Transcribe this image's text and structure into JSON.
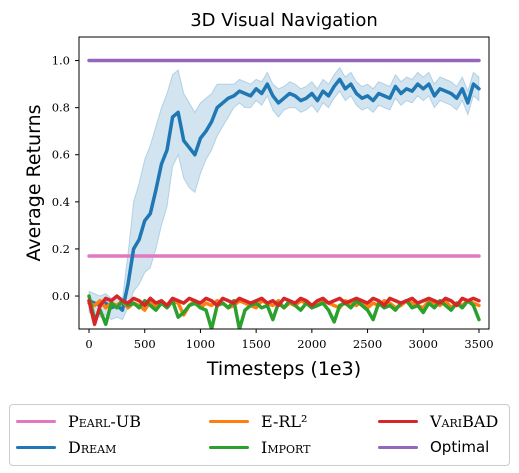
{
  "chart_data": {
    "type": "line",
    "title": "3D Visual Navigation",
    "xlabel": "Timesteps (1e3)",
    "ylabel": "Average Returns",
    "xlim": [
      -90,
      3590
    ],
    "ylim": [
      -0.14,
      1.1
    ],
    "xticks": [
      0,
      500,
      1000,
      1500,
      2000,
      2500,
      3000,
      3500
    ],
    "yticks": [
      0.0,
      0.2,
      0.4,
      0.6,
      0.8,
      1.0
    ],
    "xtick_labels": [
      "0",
      "500",
      "1000",
      "1500",
      "2000",
      "2500",
      "3000",
      "3500"
    ],
    "ytick_labels": [
      "0.0",
      "0.2",
      "0.4",
      "0.6",
      "0.8",
      "1.0"
    ],
    "grid": false,
    "legend_position": "bottom",
    "series": [
      {
        "name": "Pearl-UB",
        "color": "#e377c2",
        "x": [
          0,
          3500
        ],
        "y": [
          0.17,
          0.17
        ]
      },
      {
        "name": "Dream",
        "color": "#1f77b4",
        "band_color": "#1f77b4",
        "x": [
          0,
          50,
          100,
          150,
          200,
          250,
          300,
          350,
          400,
          450,
          500,
          550,
          600,
          650,
          700,
          750,
          800,
          850,
          900,
          950,
          1000,
          1050,
          1100,
          1150,
          1200,
          1250,
          1300,
          1350,
          1400,
          1450,
          1500,
          1550,
          1600,
          1650,
          1700,
          1750,
          1800,
          1850,
          1900,
          1950,
          2000,
          2050,
          2100,
          2150,
          2200,
          2250,
          2300,
          2350,
          2400,
          2450,
          2500,
          2550,
          2600,
          2650,
          2700,
          2750,
          2800,
          2850,
          2900,
          2950,
          3000,
          3050,
          3100,
          3150,
          3200,
          3250,
          3300,
          3350,
          3400,
          3450,
          3500
        ],
        "y": [
          -0.02,
          -0.03,
          -0.04,
          -0.03,
          -0.05,
          -0.04,
          -0.06,
          0.05,
          0.2,
          0.24,
          0.32,
          0.35,
          0.45,
          0.56,
          0.62,
          0.76,
          0.78,
          0.66,
          0.63,
          0.6,
          0.67,
          0.7,
          0.74,
          0.8,
          0.82,
          0.84,
          0.85,
          0.87,
          0.86,
          0.85,
          0.88,
          0.86,
          0.9,
          0.85,
          0.82,
          0.84,
          0.86,
          0.85,
          0.83,
          0.84,
          0.86,
          0.83,
          0.87,
          0.85,
          0.89,
          0.92,
          0.88,
          0.9,
          0.86,
          0.84,
          0.85,
          0.83,
          0.86,
          0.85,
          0.84,
          0.89,
          0.86,
          0.88,
          0.87,
          0.9,
          0.88,
          0.9,
          0.85,
          0.88,
          0.87,
          0.86,
          0.84,
          0.88,
          0.82,
          0.9,
          0.88
        ],
        "lower": [
          -0.07,
          -0.08,
          -0.09,
          -0.08,
          -0.1,
          -0.09,
          -0.1,
          -0.05,
          0.02,
          0.05,
          0.1,
          0.12,
          0.2,
          0.3,
          0.38,
          0.55,
          0.6,
          0.5,
          0.46,
          0.44,
          0.52,
          0.58,
          0.62,
          0.68,
          0.72,
          0.76,
          0.8,
          0.82,
          0.8,
          0.8,
          0.83,
          0.81,
          0.85,
          0.79,
          0.76,
          0.79,
          0.8,
          0.8,
          0.78,
          0.79,
          0.81,
          0.78,
          0.82,
          0.8,
          0.84,
          0.87,
          0.83,
          0.85,
          0.81,
          0.79,
          0.8,
          0.78,
          0.81,
          0.8,
          0.79,
          0.84,
          0.81,
          0.83,
          0.82,
          0.85,
          0.83,
          0.85,
          0.8,
          0.83,
          0.82,
          0.81,
          0.79,
          0.83,
          0.77,
          0.85,
          0.83
        ],
        "upper": [
          0.02,
          0.01,
          0.0,
          0.01,
          -0.01,
          0.0,
          -0.01,
          0.18,
          0.4,
          0.48,
          0.58,
          0.64,
          0.72,
          0.8,
          0.86,
          0.94,
          0.96,
          0.86,
          0.82,
          0.78,
          0.82,
          0.84,
          0.86,
          0.9,
          0.9,
          0.9,
          0.9,
          0.92,
          0.91,
          0.9,
          0.92,
          0.91,
          0.95,
          0.9,
          0.88,
          0.89,
          0.91,
          0.9,
          0.88,
          0.89,
          0.91,
          0.88,
          0.92,
          0.9,
          0.94,
          0.97,
          0.93,
          0.95,
          0.91,
          0.89,
          0.9,
          0.88,
          0.91,
          0.9,
          0.89,
          0.94,
          0.91,
          0.93,
          0.92,
          0.95,
          0.93,
          0.95,
          0.9,
          0.93,
          0.92,
          0.91,
          0.89,
          0.93,
          0.87,
          0.95,
          0.93
        ]
      },
      {
        "name": "E-RL²",
        "color": "#ff7f0e",
        "x": [
          0,
          50,
          100,
          150,
          200,
          250,
          300,
          350,
          400,
          450,
          500,
          550,
          600,
          650,
          700,
          750,
          800,
          850,
          900,
          950,
          1000,
          1050,
          1100,
          1150,
          1200,
          1250,
          1300,
          1350,
          1400,
          1450,
          1500,
          1550,
          1600,
          1650,
          1700,
          1750,
          1800,
          1850,
          1900,
          1950,
          2000,
          2050,
          2100,
          2150,
          2200,
          2250,
          2300,
          2350,
          2400,
          2450,
          2500,
          2550,
          2600,
          2650,
          2700,
          2750,
          2800,
          2850,
          2900,
          2950,
          3000,
          3050,
          3100,
          3150,
          3200,
          3250,
          3300,
          3350,
          3400,
          3450,
          3500
        ],
        "y": [
          -0.03,
          -0.04,
          -0.02,
          -0.05,
          -0.03,
          -0.04,
          -0.02,
          -0.05,
          -0.03,
          -0.04,
          -0.06,
          -0.02,
          -0.05,
          -0.03,
          -0.04,
          -0.02,
          -0.03,
          -0.08,
          -0.04,
          -0.02,
          -0.05,
          -0.03,
          -0.04,
          -0.02,
          -0.03,
          -0.05,
          -0.04,
          -0.02,
          -0.03,
          -0.04,
          -0.05,
          -0.02,
          -0.03,
          -0.04,
          -0.02,
          -0.05,
          -0.03,
          -0.04,
          -0.02,
          -0.03,
          -0.05,
          -0.04,
          -0.02,
          -0.03,
          -0.04,
          -0.05,
          -0.02,
          -0.03,
          -0.04,
          -0.02,
          -0.05,
          -0.03,
          -0.04,
          -0.02,
          -0.03,
          -0.05,
          -0.04,
          -0.02,
          -0.03,
          -0.04,
          -0.05,
          -0.02,
          -0.03,
          -0.04,
          -0.02,
          -0.05,
          -0.03,
          -0.04,
          -0.02,
          -0.03,
          -0.04
        ]
      },
      {
        "name": "Import",
        "color": "#2ca02c",
        "x": [
          0,
          50,
          100,
          150,
          200,
          250,
          300,
          350,
          400,
          450,
          500,
          550,
          600,
          650,
          700,
          750,
          800,
          850,
          900,
          950,
          1000,
          1050,
          1100,
          1150,
          1200,
          1250,
          1300,
          1350,
          1400,
          1450,
          1500,
          1550,
          1600,
          1650,
          1700,
          1750,
          1800,
          1850,
          1900,
          1950,
          2000,
          2050,
          2100,
          2150,
          2200,
          2250,
          2300,
          2350,
          2400,
          2450,
          2500,
          2550,
          2600,
          2650,
          2700,
          2750,
          2800,
          2850,
          2900,
          2950,
          3000,
          3050,
          3100,
          3150,
          3200,
          3250,
          3300,
          3350,
          3400,
          3450,
          3500
        ],
        "y": [
          0.0,
          -0.1,
          -0.06,
          -0.12,
          -0.03,
          -0.05,
          -0.02,
          -0.04,
          -0.03,
          -0.05,
          -0.02,
          -0.04,
          -0.06,
          -0.03,
          -0.05,
          -0.02,
          -0.09,
          -0.07,
          -0.04,
          -0.03,
          -0.05,
          -0.06,
          -0.14,
          -0.04,
          -0.03,
          -0.05,
          -0.02,
          -0.14,
          -0.06,
          -0.04,
          -0.03,
          -0.05,
          -0.04,
          -0.1,
          -0.03,
          -0.05,
          -0.02,
          -0.04,
          -0.06,
          -0.03,
          -0.05,
          -0.04,
          -0.03,
          -0.06,
          -0.11,
          -0.04,
          -0.03,
          -0.05,
          -0.02,
          -0.04,
          -0.06,
          -0.1,
          -0.03,
          -0.05,
          -0.04,
          -0.06,
          -0.03,
          -0.02,
          -0.05,
          -0.04,
          -0.07,
          -0.03,
          -0.05,
          -0.02,
          -0.04,
          -0.06,
          -0.03,
          -0.05,
          -0.02,
          -0.04,
          -0.1
        ]
      },
      {
        "name": "VariBAD",
        "color": "#d62728",
        "x": [
          0,
          50,
          100,
          150,
          200,
          250,
          300,
          350,
          400,
          450,
          500,
          550,
          600,
          650,
          700,
          750,
          800,
          850,
          900,
          950,
          1000,
          1050,
          1100,
          1150,
          1200,
          1250,
          1300,
          1350,
          1400,
          1450,
          1500,
          1550,
          1600,
          1650,
          1700,
          1750,
          1800,
          1850,
          1900,
          1950,
          2000,
          2050,
          2100,
          2150,
          2200,
          2250,
          2300,
          2350,
          2400,
          2450,
          2500,
          2550,
          2600,
          2650,
          2700,
          2750,
          2800,
          2850,
          2900,
          2950,
          3000,
          3050,
          3100,
          3150,
          3200,
          3250,
          3300,
          3350,
          3400,
          3450,
          3500
        ],
        "y": [
          -0.02,
          -0.12,
          -0.04,
          -0.01,
          -0.02,
          0.0,
          -0.02,
          -0.03,
          -0.01,
          -0.02,
          -0.04,
          -0.01,
          -0.03,
          -0.02,
          -0.04,
          -0.01,
          -0.02,
          -0.03,
          -0.01,
          -0.02,
          -0.03,
          -0.01,
          -0.02,
          -0.04,
          -0.01,
          -0.02,
          -0.03,
          -0.01,
          -0.02,
          -0.03,
          -0.02,
          -0.01,
          -0.03,
          -0.02,
          -0.04,
          -0.01,
          -0.02,
          -0.03,
          -0.01,
          -0.02,
          -0.04,
          -0.02,
          -0.01,
          -0.03,
          -0.02,
          -0.01,
          -0.03,
          -0.02,
          -0.01,
          -0.02,
          -0.03,
          -0.01,
          -0.02,
          -0.04,
          -0.01,
          -0.02,
          -0.03,
          -0.02,
          -0.01,
          -0.03,
          -0.02,
          -0.01,
          -0.02,
          -0.03,
          -0.01,
          -0.02,
          -0.04,
          -0.01,
          -0.02,
          -0.01,
          -0.02
        ]
      },
      {
        "name": "Optimal",
        "color": "#9467bd",
        "x": [
          0,
          3500
        ],
        "y": [
          1.0,
          1.0
        ]
      }
    ]
  },
  "legend": {
    "items": [
      {
        "label": "Pearl-UB",
        "color": "#e377c2"
      },
      {
        "label": "Dream",
        "color": "#1f77b4"
      },
      {
        "label": "E-RL²",
        "color": "#ff7f0e"
      },
      {
        "label": "Import",
        "color": "#2ca02c"
      },
      {
        "label": "VariBAD",
        "color": "#d62728"
      },
      {
        "label": "Optimal",
        "color": "#9467bd"
      }
    ]
  }
}
